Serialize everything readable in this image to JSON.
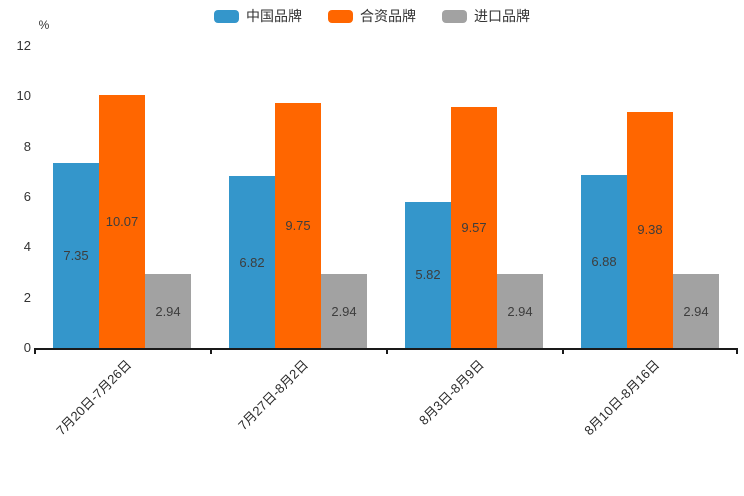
{
  "chart_data": {
    "type": "bar",
    "title": "",
    "xlabel": "",
    "ylabel": "%",
    "categories": [
      "7月20日-7月26日",
      "7月27日-8月2日",
      "8月3日-8月9日",
      "8月10日-8月16日"
    ],
    "series": [
      {
        "name": "中国品牌",
        "color": "#3496CB",
        "values": [
          7.35,
          6.82,
          5.82,
          6.88
        ]
      },
      {
        "name": "合资品牌",
        "color": "#FF6600",
        "values": [
          10.07,
          9.75,
          9.57,
          9.38
        ]
      },
      {
        "name": "进口品牌",
        "color": "#A2A2A2",
        "values": [
          2.94,
          2.94,
          2.94,
          2.94
        ]
      }
    ],
    "value_label_decimals": 2,
    "ylim": [
      0,
      12
    ],
    "yticks": [
      0,
      2,
      4,
      6,
      8,
      10,
      12
    ],
    "grid": false,
    "legend_position": "top",
    "axis_color": "#1a1a1a",
    "label_text_color": "#3d3d3d"
  }
}
